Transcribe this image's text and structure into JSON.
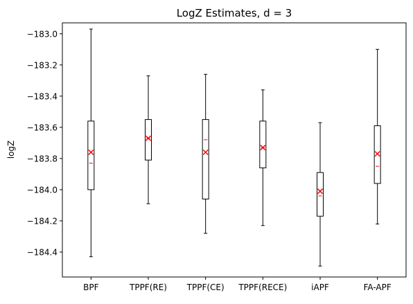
{
  "chart_data": {
    "type": "box",
    "title": "LogZ Estimates, d = 3",
    "xlabel": "",
    "ylabel": "logZ",
    "ylim": [
      -184.56,
      -182.93
    ],
    "yticks": [
      -183.0,
      -183.2,
      -183.4,
      -183.6,
      -183.8,
      -184.0,
      -184.2,
      -184.4
    ],
    "ytick_labels": [
      "−183.0",
      "−183.2",
      "−183.4",
      "−183.6",
      "−183.8",
      "−184.0",
      "−184.2",
      "−184.4"
    ],
    "categories": [
      "BPF",
      "TPPF(RE)",
      "TPPF(CE)",
      "TPPF(RECE)",
      "iAPF",
      "FA-APF"
    ],
    "grid": false,
    "legend": "none",
    "colors": {
      "box": "#000000",
      "median": "#ff0000",
      "mean_marker": "#ff0000"
    },
    "boxes": [
      {
        "whisker_low": -184.43,
        "q1": -184.0,
        "median": -183.83,
        "q3": -183.56,
        "whisker_high": -182.97,
        "mean": -183.76
      },
      {
        "whisker_low": -184.09,
        "q1": -183.81,
        "median": -183.67,
        "q3": -183.55,
        "whisker_high": -183.27,
        "mean": -183.67
      },
      {
        "whisker_low": -184.28,
        "q1": -184.06,
        "median": -183.68,
        "q3": -183.55,
        "whisker_high": -183.26,
        "mean": -183.76
      },
      {
        "whisker_low": -184.23,
        "q1": -183.86,
        "median": -183.73,
        "q3": -183.56,
        "whisker_high": -183.36,
        "mean": -183.73
      },
      {
        "whisker_low": -184.49,
        "q1": -184.17,
        "median": -184.04,
        "q3": -183.89,
        "whisker_high": -183.57,
        "mean": -184.01
      },
      {
        "whisker_low": -184.22,
        "q1": -183.96,
        "median": -183.85,
        "q3": -183.59,
        "whisker_high": -183.1,
        "mean": -183.77
      }
    ]
  }
}
